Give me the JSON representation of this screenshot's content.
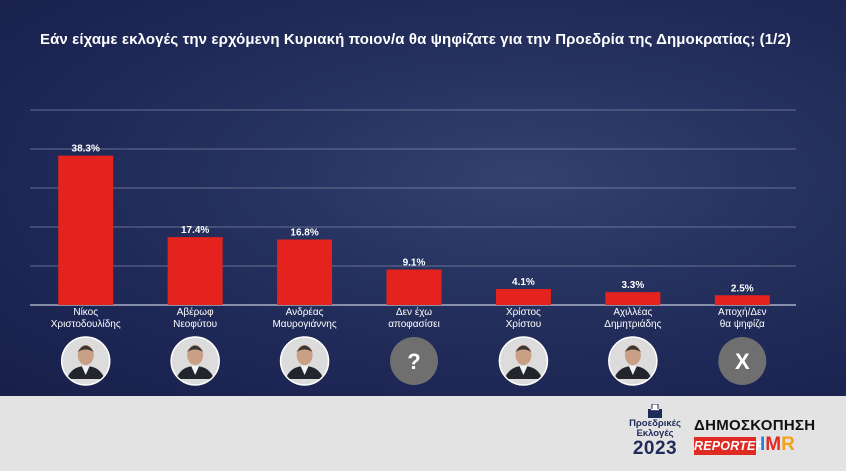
{
  "chart_data": {
    "type": "bar",
    "title": "Εάν είχαμε εκλογές την ερχόμενη Κυριακή ποιον/α θα ψηφίζατε για την Προεδρία της Δημοκρατίας; (1/2)",
    "categories": [
      [
        "Νίκος",
        "Χριστοδουλίδης"
      ],
      [
        "Αβέρωφ",
        "Νεοφύτου"
      ],
      [
        "Ανδρέας",
        "Μαυρογιάννης"
      ],
      [
        "Δεν έχω",
        "αποφασίσει"
      ],
      [
        "Χρίστος",
        "Χρίστου"
      ],
      [
        "Αχιλλέας",
        "Δημητριάδης"
      ],
      [
        "Αποχή/Δεν",
        "θα ψηφίζα"
      ]
    ],
    "values": [
      38.3,
      17.4,
      16.8,
      9.1,
      4.1,
      3.3,
      2.5
    ],
    "value_labels": [
      "38.3%",
      "17.4%",
      "16.8%",
      "9.1%",
      "4.1%",
      "3.3%",
      "2.5%"
    ],
    "ylim": [
      0,
      50
    ],
    "grid": true,
    "legend": "none",
    "avatars": [
      {
        "type": "photo",
        "icon": "person-portrait-icon"
      },
      {
        "type": "photo",
        "icon": "person-portrait-icon"
      },
      {
        "type": "photo",
        "icon": "person-portrait-icon"
      },
      {
        "type": "glyph",
        "text": "?",
        "icon": "question-mark-icon"
      },
      {
        "type": "photo",
        "icon": "person-portrait-icon"
      },
      {
        "type": "photo",
        "icon": "person-portrait-icon"
      },
      {
        "type": "glyph",
        "text": "X",
        "icon": "abstain-x-icon"
      }
    ]
  },
  "footer": {
    "elections_logo": {
      "line1": "Προεδρικές",
      "line2": "Εκλογές",
      "year": "2023"
    },
    "poll_logo": {
      "word": "ΔΗΜΟΣΚΟΠΗΣΗ",
      "brand1": "REPORTER",
      "brand2_parts": [
        "I",
        "M",
        "R"
      ]
    }
  },
  "colors": {
    "background": "#1f2a58",
    "bar": "#e4231f",
    "grid": "#c9cfe0",
    "text": "#ffffff",
    "footer": "#e3e3e3",
    "avatar_glyph_bg": "#6f6f6f"
  }
}
